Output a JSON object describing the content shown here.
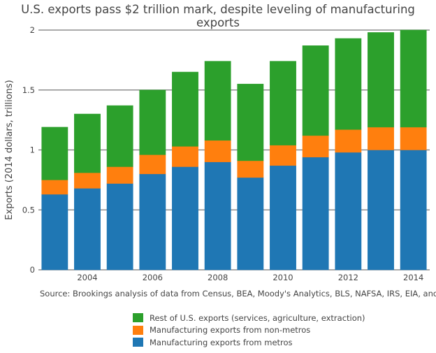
{
  "chart_data": {
    "type": "bar",
    "stacked": true,
    "title": "U.S. exports pass $2 trillion mark, despite leveling of manufacturing exports",
    "xlabel": "",
    "ylabel": "Exports (2014 dollars, trillions)",
    "source": "Source: Brookings analysis of data from Census, BEA, Moody's Analytics, BLS, NAFSA, IRS, EIA, and Sabre",
    "categories": [
      2003,
      2004,
      2005,
      2006,
      2007,
      2008,
      2009,
      2010,
      2011,
      2012,
      2013,
      2014
    ],
    "x_ticks": [
      "2004",
      "2006",
      "2008",
      "2010",
      "2012",
      "2014"
    ],
    "y_ticks": [
      "0",
      "0.5",
      "1",
      "1.5",
      "2"
    ],
    "ylim": [
      0,
      2
    ],
    "grid": true,
    "legend_position": "bottom",
    "series": [
      {
        "name": "Manufacturing exports from metros",
        "color": "#1f77b4",
        "values": [
          0.63,
          0.68,
          0.72,
          0.8,
          0.86,
          0.9,
          0.77,
          0.87,
          0.94,
          0.98,
          1.0,
          1.0
        ]
      },
      {
        "name": "Manufacturing exports from non-metros",
        "color": "#ff7f0e",
        "values": [
          0.12,
          0.13,
          0.14,
          0.16,
          0.17,
          0.18,
          0.14,
          0.17,
          0.18,
          0.19,
          0.19,
          0.19
        ]
      },
      {
        "name": "Rest of U.S. exports (services, agriculture, extraction)",
        "color": "#2ca02c",
        "values": [
          0.44,
          0.49,
          0.51,
          0.54,
          0.62,
          0.66,
          0.64,
          0.7,
          0.75,
          0.76,
          0.79,
          0.81
        ]
      }
    ]
  }
}
